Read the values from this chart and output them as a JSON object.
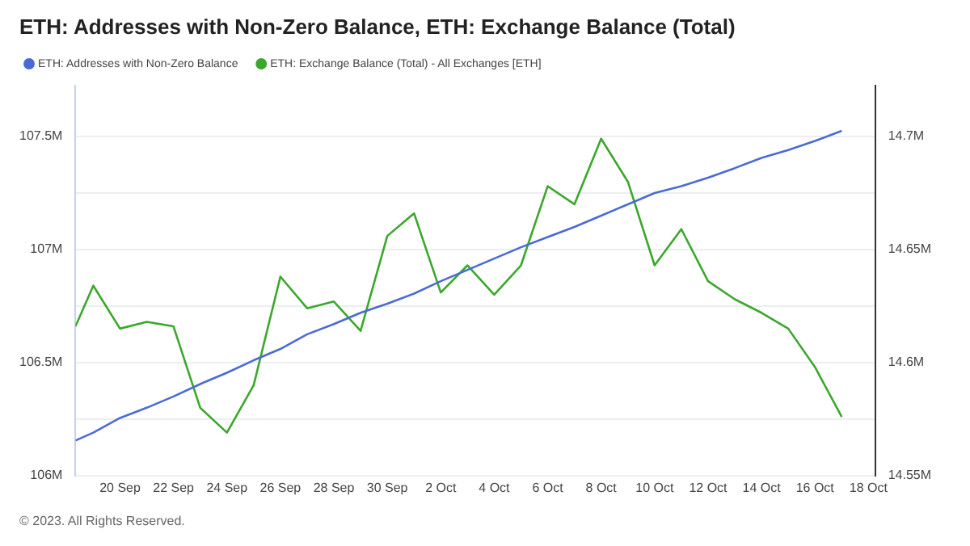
{
  "chart_data": {
    "type": "line",
    "title": "ETH: Addresses with Non-Zero Balance, ETH: Exchange Balance (Total)",
    "x": [
      "2023-09-18T08:00",
      "2023-09-19",
      "2023-09-20",
      "2023-09-21",
      "2023-09-22",
      "2023-09-23",
      "2023-09-24",
      "2023-09-25",
      "2023-09-26",
      "2023-09-27",
      "2023-09-28",
      "2023-09-29",
      "2023-09-30",
      "2023-10-01",
      "2023-10-02",
      "2023-10-03",
      "2023-10-04",
      "2023-10-05",
      "2023-10-06",
      "2023-10-07",
      "2023-10-08",
      "2023-10-09",
      "2023-10-10",
      "2023-10-11",
      "2023-10-12",
      "2023-10-13",
      "2023-10-14",
      "2023-10-15",
      "2023-10-16",
      "2023-10-17"
    ],
    "series": [
      {
        "name": "ETH: Addresses with Non-Zero Balance",
        "color": "#4a6bd4",
        "values": [
          106.155,
          106.19,
          106.255,
          106.3,
          106.35,
          106.405,
          106.455,
          106.51,
          106.56,
          106.625,
          106.67,
          106.72,
          106.76,
          106.805,
          106.86,
          106.91,
          106.96,
          107.01,
          107.055,
          107.1,
          107.15,
          107.2,
          107.25,
          107.28,
          107.318,
          107.36,
          107.405,
          107.44,
          107.48,
          107.525
        ]
      },
      {
        "name": "ETH: Exchange Balance (Total) - All Exchanges [ETH]",
        "color": "#3aa82a",
        "axis": "y2",
        "values": [
          14.616,
          14.634,
          14.615,
          14.618,
          14.616,
          14.58,
          14.569,
          14.59,
          14.638,
          14.624,
          14.627,
          14.614,
          14.656,
          14.666,
          14.631,
          14.643,
          14.63,
          14.643,
          14.678,
          14.67,
          14.699,
          14.68,
          14.643,
          14.659,
          14.636,
          14.628,
          14.622,
          14.615,
          14.598,
          14.576
        ]
      }
    ],
    "xlim": [
      "2023-09-18T08:00",
      "2023-10-18T06:00"
    ],
    "xticks": [
      {
        "value": "2023-09-20",
        "label": "20 Sep"
      },
      {
        "value": "2023-09-22",
        "label": "22 Sep"
      },
      {
        "value": "2023-09-24",
        "label": "24 Sep"
      },
      {
        "value": "2023-09-26",
        "label": "26 Sep"
      },
      {
        "value": "2023-09-28",
        "label": "28 Sep"
      },
      {
        "value": "2023-09-30",
        "label": "30 Sep"
      },
      {
        "value": "2023-10-02",
        "label": "2 Oct"
      },
      {
        "value": "2023-10-04",
        "label": "4 Oct"
      },
      {
        "value": "2023-10-06",
        "label": "6 Oct"
      },
      {
        "value": "2023-10-08",
        "label": "8 Oct"
      },
      {
        "value": "2023-10-10",
        "label": "10 Oct"
      },
      {
        "value": "2023-10-12",
        "label": "12 Oct"
      },
      {
        "value": "2023-10-14",
        "label": "14 Oct"
      },
      {
        "value": "2023-10-16",
        "label": "16 Oct"
      },
      {
        "value": "2023-10-18",
        "label": "18 Oct"
      }
    ],
    "ylim": [
      106,
      107.725
    ],
    "yticks": [
      {
        "value": 106,
        "label": "106M"
      },
      {
        "value": 106.25,
        "label": null
      },
      {
        "value": 106.5,
        "label": "106.5M"
      },
      {
        "value": 106.75,
        "label": null
      },
      {
        "value": 107,
        "label": "107M"
      },
      {
        "value": 107.25,
        "label": null
      },
      {
        "value": 107.5,
        "label": "107.5M"
      }
    ],
    "y2lim": [
      14.55,
      14.7225
    ],
    "y2ticks": [
      {
        "value": 14.55,
        "label": "14.55M"
      },
      {
        "value": 14.6,
        "label": "14.6M"
      },
      {
        "value": 14.65,
        "label": "14.65M"
      },
      {
        "value": 14.7,
        "label": "14.7M"
      }
    ],
    "grid": "y",
    "legend": "top left",
    "marker": "none",
    "line_style": "solid",
    "annotations": [
      "© 2023. All Rights Reserved."
    ]
  }
}
